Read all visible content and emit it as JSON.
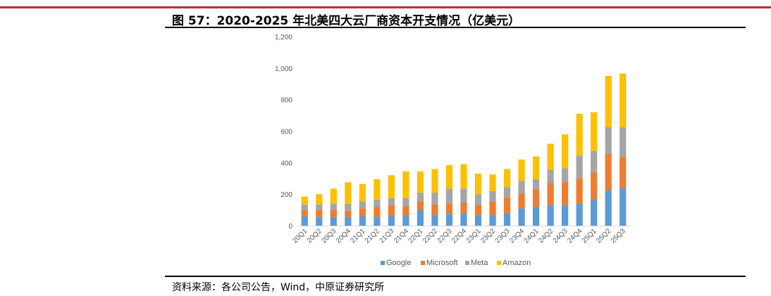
{
  "title": "图 57：2020-2025 年北美四大云厂商资本开支情况（亿美元）",
  "source": "资料来源：各公司公告，Wind，中原证券研究所",
  "colors": {
    "accent_rule": "#b0323a",
    "Google": "#5b9bd5",
    "Microsoft": "#ed7d31",
    "Meta": "#a5a5a5",
    "Amazon": "#ffc000"
  },
  "chart_data": {
    "type": "bar",
    "stacked": true,
    "title": "",
    "xlabel": "",
    "ylabel": "",
    "ylim": [
      0,
      1200
    ],
    "yticks": [
      0,
      200,
      400,
      600,
      800,
      1000,
      1200
    ],
    "ytick_labels": [
      "0",
      "200",
      "400",
      "600",
      "800",
      "1,000",
      "1,200"
    ],
    "grid": false,
    "legend": "bottom",
    "categories": [
      "20Q1",
      "20Q2",
      "20Q3",
      "20Q4",
      "21Q1",
      "21Q2",
      "21Q3",
      "21Q4",
      "22Q1",
      "22Q2",
      "22Q3",
      "22Q4",
      "23Q1",
      "23Q2",
      "23Q3",
      "23Q4",
      "24Q1",
      "24Q2",
      "24Q3",
      "24Q4",
      "25Q1",
      "25Q2",
      "25Q3"
    ],
    "series": [
      {
        "name": "Google",
        "values": [
          60,
          55,
          55,
          55,
          60,
          55,
          65,
          65,
          100,
          70,
          75,
          80,
          65,
          70,
          80,
          110,
          120,
          130,
          130,
          140,
          170,
          225,
          240
        ]
      },
      {
        "name": "Microsoft",
        "values": [
          40,
          45,
          45,
          40,
          50,
          65,
          65,
          60,
          55,
          65,
          65,
          65,
          65,
          85,
          100,
          95,
          110,
          140,
          150,
          160,
          170,
          230,
          195
        ]
      },
      {
        "name": "Meta",
        "values": [
          35,
          35,
          40,
          45,
          45,
          45,
          45,
          50,
          55,
          75,
          95,
          90,
          70,
          65,
          65,
          80,
          65,
          85,
          85,
          145,
          135,
          170,
          190
        ]
      },
      {
        "name": "Amazon",
        "values": [
          50,
          65,
          95,
          135,
          110,
          130,
          145,
          170,
          135,
          150,
          150,
          155,
          130,
          105,
          115,
          135,
          145,
          165,
          215,
          265,
          245,
          325,
          340
        ]
      }
    ]
  }
}
